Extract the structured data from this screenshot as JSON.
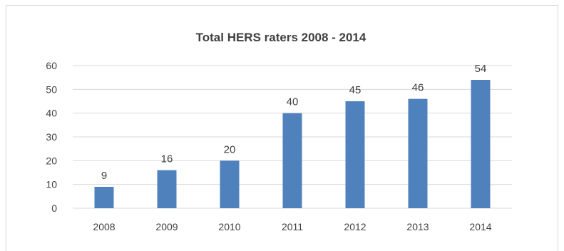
{
  "chart_data": {
    "type": "bar",
    "title": "Total HERS raters 2008  - 2014",
    "categories": [
      "2008",
      "2009",
      "2010",
      "2011",
      "2012",
      "2013",
      "2014"
    ],
    "series": [
      {
        "values": [
          9,
          16,
          20,
          40,
          45,
          46,
          54
        ]
      }
    ],
    "data_labels": [
      "9",
      "16",
      "20",
      "40",
      "45",
      "46",
      "54"
    ],
    "y_ticks": [
      "0",
      "10",
      "20",
      "30",
      "40",
      "50",
      "60"
    ],
    "ylim": [
      0,
      60
    ],
    "xlabel": "",
    "ylabel": "",
    "grid": true,
    "legend": "none",
    "colors": {
      "bar": "#4f81bd",
      "grid": "#d9d9d9",
      "text": "#404040",
      "title": "#404040"
    }
  }
}
